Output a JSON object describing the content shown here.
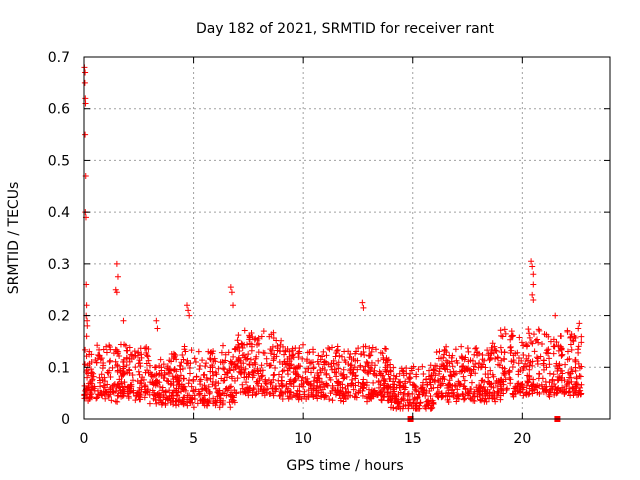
{
  "chart_data": {
    "type": "scatter",
    "title": "Day 182 of 2021, SRMTID for receiver rant",
    "xlabel": "GPS time / hours",
    "ylabel": "SRMTID / TECUs",
    "xlim": [
      0,
      24
    ],
    "ylim": [
      0,
      0.7
    ],
    "x_ticks": [
      0,
      5,
      10,
      15,
      20
    ],
    "x_tick_labels": [
      "0",
      "5",
      "10",
      "15",
      "20"
    ],
    "y_ticks": [
      0,
      0.1,
      0.2,
      0.3,
      0.4,
      0.5,
      0.6,
      0.7
    ],
    "y_tick_labels": [
      "0",
      "0.1",
      "0.2",
      "0.3",
      "0.4",
      "0.5",
      "0.6",
      "0.7"
    ],
    "grid": true,
    "marker": "plus",
    "series_color": "#ff0000",
    "series": [
      {
        "name": "SRMTID",
        "points": [
          [
            0.02,
            0.68
          ],
          [
            0.05,
            0.67
          ],
          [
            0.04,
            0.65
          ],
          [
            0.06,
            0.62
          ],
          [
            0.07,
            0.61
          ],
          [
            0.05,
            0.55
          ],
          [
            0.08,
            0.47
          ],
          [
            0.06,
            0.4
          ],
          [
            0.09,
            0.39
          ],
          [
            0.1,
            0.26
          ],
          [
            0.12,
            0.22
          ],
          [
            0.1,
            0.2
          ],
          [
            0.14,
            0.19
          ],
          [
            0.15,
            0.18
          ],
          [
            0.12,
            0.16
          ],
          [
            1.5,
            0.3
          ],
          [
            1.55,
            0.275
          ],
          [
            1.45,
            0.25
          ],
          [
            1.5,
            0.245
          ],
          [
            1.8,
            0.19
          ],
          [
            3.3,
            0.19
          ],
          [
            3.35,
            0.175
          ],
          [
            4.7,
            0.22
          ],
          [
            4.75,
            0.21
          ],
          [
            4.8,
            0.2
          ],
          [
            6.7,
            0.255
          ],
          [
            6.75,
            0.245
          ],
          [
            6.8,
            0.22
          ],
          [
            12.7,
            0.225
          ],
          [
            12.75,
            0.215
          ],
          [
            20.4,
            0.305
          ],
          [
            20.45,
            0.295
          ],
          [
            20.5,
            0.28
          ],
          [
            20.5,
            0.26
          ],
          [
            20.45,
            0.24
          ],
          [
            20.5,
            0.23
          ],
          [
            21.5,
            0.2
          ],
          [
            22.6,
            0.185
          ],
          [
            22.55,
            0.175
          ],
          [
            14.9,
            0.0
          ],
          [
            21.6,
            0.0
          ]
        ],
        "band": {
          "x_range": [
            0,
            22.7
          ],
          "baseline_description": "dense noisy band, mostly 0.03 to 0.16 TECU",
          "segments": [
            {
              "x": [
                0.0,
                3.0
              ],
              "y": [
                0.04,
                0.14
              ]
            },
            {
              "x": [
                3.0,
                4.0
              ],
              "y": [
                0.03,
                0.11
              ]
            },
            {
              "x": [
                4.0,
                7.0
              ],
              "y": [
                0.03,
                0.14
              ]
            },
            {
              "x": [
                7.0,
                9.0
              ],
              "y": [
                0.05,
                0.17
              ]
            },
            {
              "x": [
                9.0,
                14.0
              ],
              "y": [
                0.04,
                0.14
              ]
            },
            {
              "x": [
                14.0,
                16.0
              ],
              "y": [
                0.02,
                0.1
              ]
            },
            {
              "x": [
                16.0,
                19.0
              ],
              "y": [
                0.04,
                0.14
              ]
            },
            {
              "x": [
                19.0,
                22.7
              ],
              "y": [
                0.05,
                0.17
              ]
            }
          ]
        }
      }
    ]
  }
}
